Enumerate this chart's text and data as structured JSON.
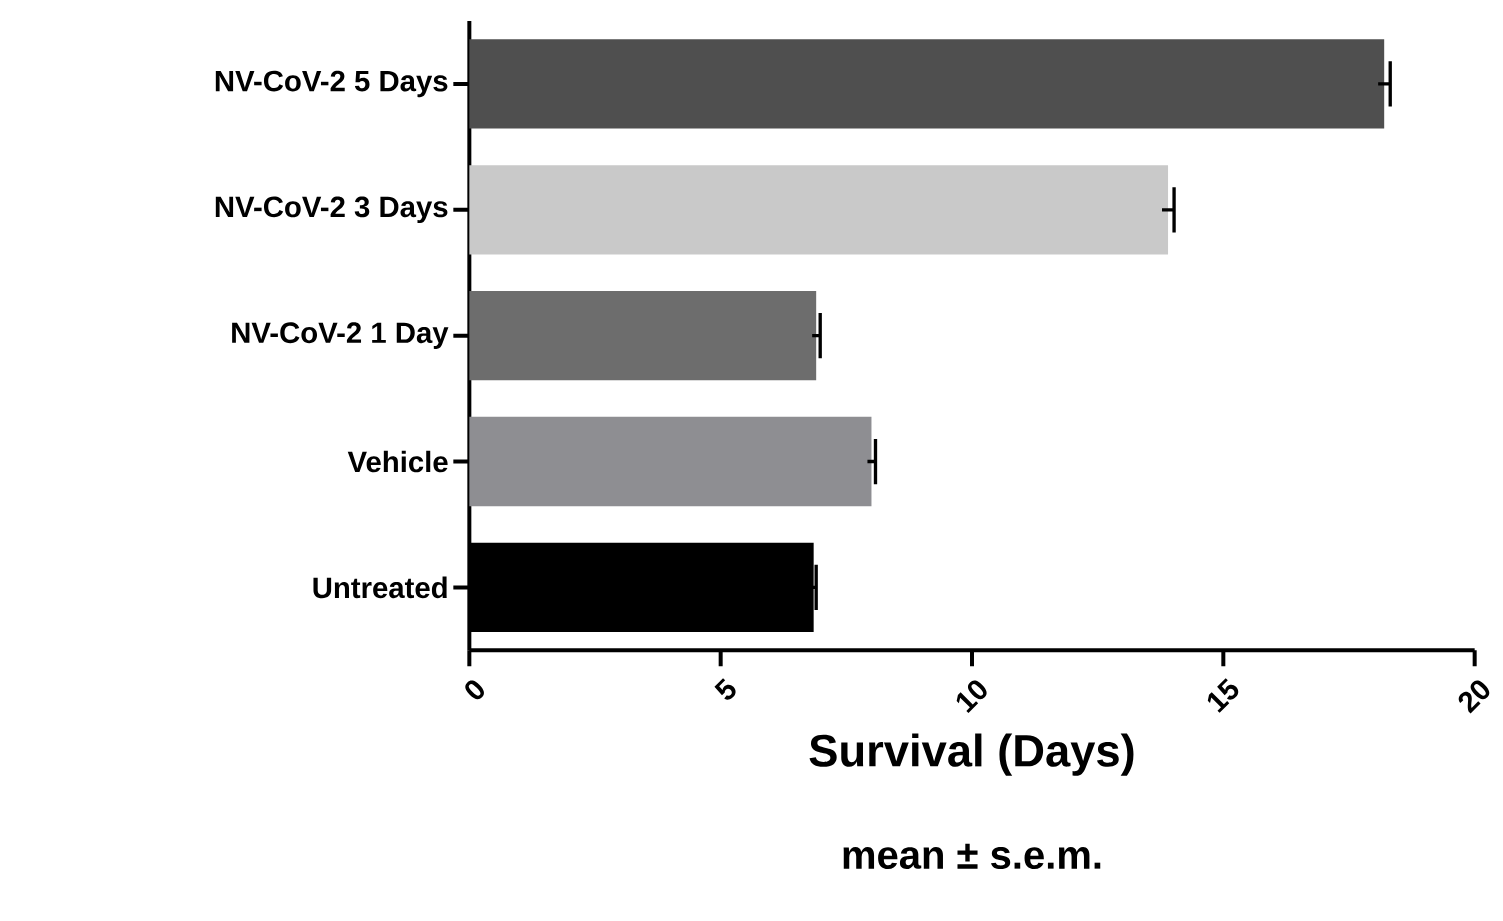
{
  "chart_data": {
    "type": "bar",
    "orientation": "horizontal",
    "categories": [
      "NV-CoV-2 5 Days",
      "NV-CoV-2 3 Days",
      "NV-CoV-2 1 Day",
      "Vehicle",
      "Untreated"
    ],
    "values": [
      18.2,
      13.9,
      6.9,
      8.0,
      6.85
    ],
    "errors": [
      0.12,
      0.12,
      0.08,
      0.08,
      0.05
    ],
    "colors": [
      "#4f4f4f",
      "#c9c9c9",
      "#6d6d6d",
      "#8e8e92",
      "#000000"
    ],
    "xlim": [
      0,
      20
    ],
    "xticks": [
      0,
      5,
      10,
      15,
      20
    ],
    "xlabel": "Survival (Days)",
    "annotations": [
      "mean ± s.e.m."
    ]
  }
}
